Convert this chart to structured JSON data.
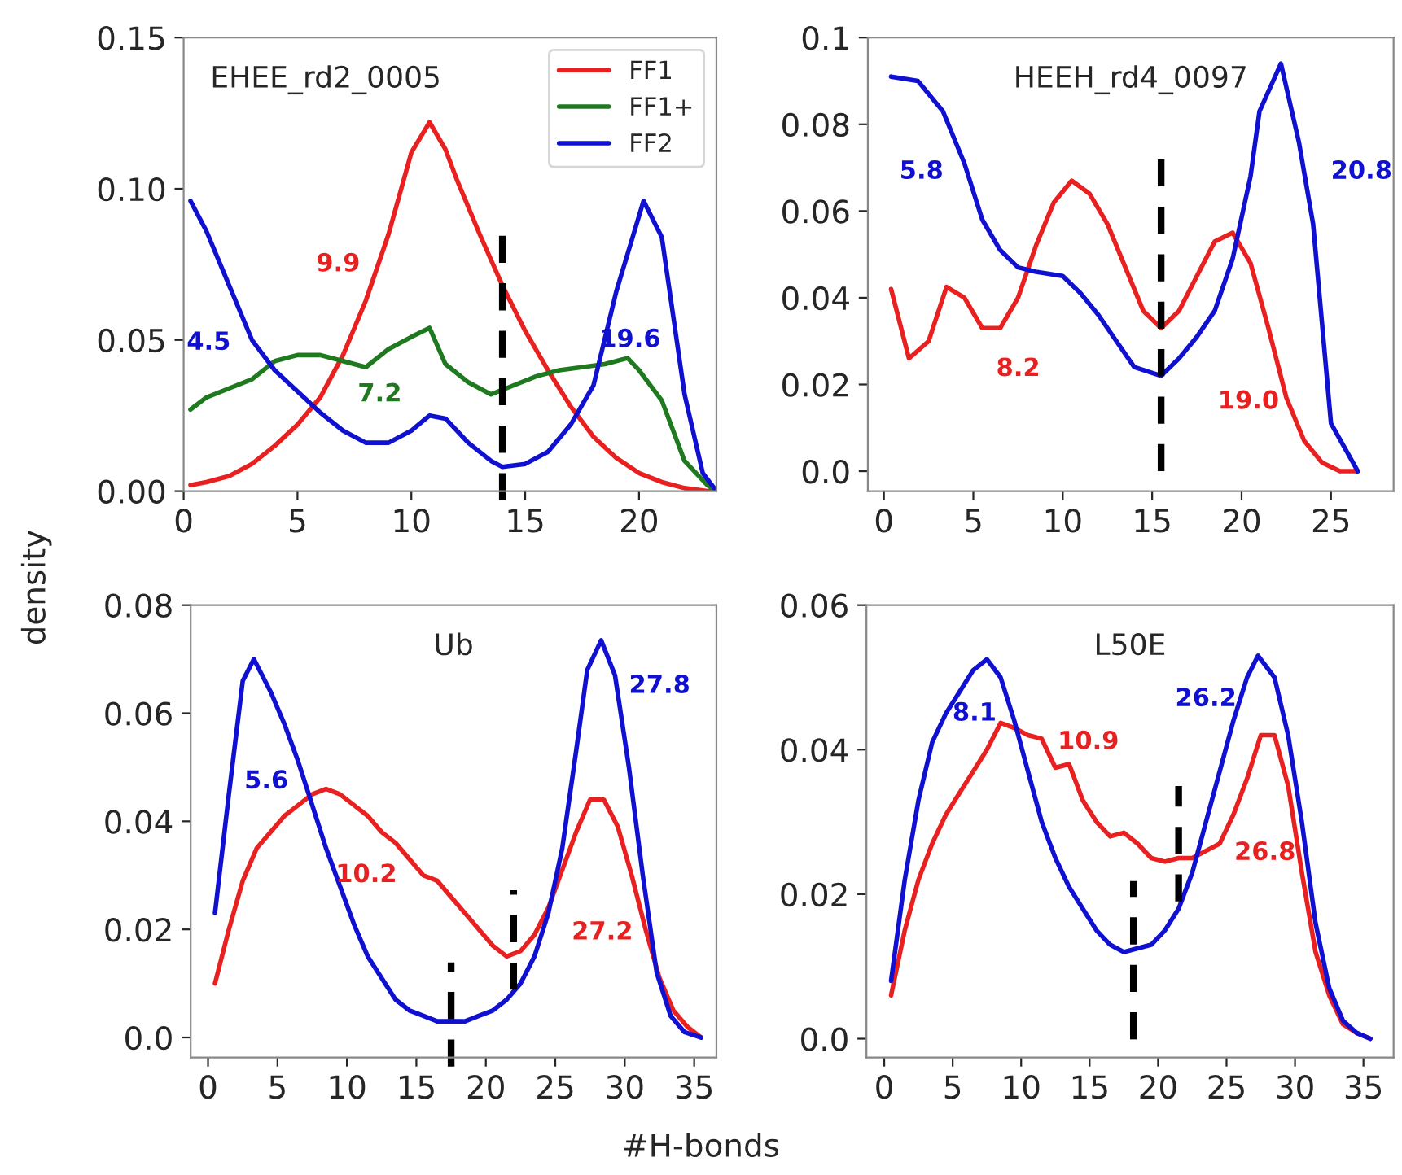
{
  "chart_data": [
    {
      "type": "line",
      "title": "EHEE_rd2_0005",
      "ylabel": "density",
      "xlim": [
        0,
        23.4
      ],
      "ylim": [
        0,
        0.15
      ],
      "xticks": [
        0,
        5,
        10,
        15,
        20
      ],
      "yticks": [
        {
          "value": 0,
          "label": "0.00"
        },
        {
          "value": 0.05,
          "label": "0.05"
        },
        {
          "value": 0.1,
          "label": "0.10"
        },
        {
          "value": 0.15,
          "label": "0.15"
        }
      ],
      "legend": "top right",
      "grid": false,
      "series": [
        {
          "name": "FF1",
          "color": "#e82020",
          "x": [
            0.3,
            1,
            2,
            3,
            4,
            5,
            6,
            7,
            8,
            9,
            10,
            10.8,
            11.5,
            12,
            13,
            14,
            15,
            16,
            17,
            18,
            19,
            20,
            21,
            22,
            23,
            23.4
          ],
          "values": [
            0.002,
            0.003,
            0.005,
            0.009,
            0.015,
            0.022,
            0.031,
            0.045,
            0.063,
            0.085,
            0.112,
            0.122,
            0.113,
            0.103,
            0.085,
            0.068,
            0.053,
            0.04,
            0.028,
            0.018,
            0.011,
            0.006,
            0.003,
            0.001,
            0.0,
            0.0
          ]
        },
        {
          "name": "FF1+",
          "color": "#1f7a1f",
          "x": [
            0.3,
            1,
            2,
            3,
            4,
            5,
            6,
            7,
            8,
            9,
            10,
            10.8,
            11.5,
            12.5,
            13.5,
            14.5,
            15.5,
            16.5,
            17.5,
            18.5,
            19.5,
            20,
            21,
            22,
            23,
            23.4
          ],
          "values": [
            0.027,
            0.031,
            0.034,
            0.037,
            0.043,
            0.045,
            0.045,
            0.043,
            0.041,
            0.047,
            0.051,
            0.054,
            0.042,
            0.036,
            0.032,
            0.035,
            0.038,
            0.04,
            0.041,
            0.042,
            0.044,
            0.04,
            0.03,
            0.01,
            0.002,
            0.0
          ]
        },
        {
          "name": "FF2",
          "color": "#1010d0",
          "x": [
            0.3,
            1,
            2,
            3,
            4,
            5,
            6,
            7,
            8,
            9,
            10,
            10.8,
            11.5,
            12.5,
            13.5,
            14,
            15,
            16,
            17,
            18,
            19,
            20.2,
            21,
            22,
            22.8,
            23.4
          ],
          "values": [
            0.096,
            0.086,
            0.068,
            0.05,
            0.04,
            0.033,
            0.026,
            0.02,
            0.016,
            0.016,
            0.02,
            0.025,
            0.024,
            0.016,
            0.01,
            0.008,
            0.009,
            0.013,
            0.022,
            0.035,
            0.066,
            0.096,
            0.084,
            0.032,
            0.006,
            0.0
          ]
        }
      ],
      "ref_lines": [
        {
          "axis": "x",
          "value": 14,
          "color": "#000000",
          "line_style": "dashed"
        }
      ],
      "annotations": [
        "9.9",
        "4.5",
        "7.2",
        "19.6"
      ]
    },
    {
      "type": "line",
      "title": "HEEH_rd4_0097",
      "xlim": [
        -0.9,
        28.5
      ],
      "ylim": [
        -0.0046,
        0.1
      ],
      "xticks": [
        0,
        5,
        10,
        15,
        20,
        25
      ],
      "yticks": [
        {
          "value": 0,
          "label": "0.0"
        },
        0.02,
        0.04,
        0.06,
        0.08,
        0.1
      ],
      "grid": false,
      "series": [
        {
          "color": "#e82020",
          "x": [
            0.4,
            1.4,
            2.5,
            3.5,
            4.5,
            5.5,
            6.5,
            7.5,
            8.5,
            9.5,
            10.5,
            11.5,
            12.5,
            13.5,
            14.5,
            15.5,
            16.5,
            17.5,
            18.5,
            19.5,
            20.5,
            21.5,
            22.5,
            23.5,
            24.5,
            25.5,
            26.5
          ],
          "values": [
            0.042,
            0.026,
            0.03,
            0.0425,
            0.04,
            0.033,
            0.033,
            0.04,
            0.052,
            0.062,
            0.067,
            0.064,
            0.057,
            0.047,
            0.037,
            0.033,
            0.037,
            0.045,
            0.053,
            0.055,
            0.048,
            0.033,
            0.017,
            0.007,
            0.002,
            0.0,
            0.0
          ]
        },
        {
          "color": "#1010d0",
          "x": [
            0.4,
            1.9,
            3.3,
            4.5,
            5.5,
            6.5,
            7.5,
            8.5,
            10,
            11,
            12,
            13,
            14,
            15.5,
            16.5,
            17.5,
            18.5,
            19.5,
            20.5,
            21,
            22.2,
            23.2,
            24,
            25,
            26.5
          ],
          "values": [
            0.091,
            0.09,
            0.083,
            0.071,
            0.058,
            0.051,
            0.047,
            0.046,
            0.045,
            0.041,
            0.036,
            0.03,
            0.024,
            0.022,
            0.026,
            0.031,
            0.037,
            0.049,
            0.068,
            0.083,
            0.094,
            0.076,
            0.057,
            0.011,
            0.0
          ]
        }
      ],
      "ref_lines": [
        {
          "axis": "x",
          "value": 15.5,
          "color": "#000000",
          "line_style": "dashed"
        }
      ],
      "annotations": [
        "5.8",
        "8.2",
        "19.0",
        "20.8"
      ]
    },
    {
      "type": "line",
      "title": "Ub",
      "xlabel": "#H-bonds",
      "xlim": [
        -1.25,
        36.6
      ],
      "ylim": [
        -0.0037,
        0.08
      ],
      "xticks": [
        0,
        5,
        10,
        15,
        20,
        25,
        30,
        35
      ],
      "yticks": [
        {
          "value": 0,
          "label": "0.0"
        },
        0.02,
        0.04,
        0.06,
        0.08
      ],
      "grid": false,
      "series": [
        {
          "color": "#e82020",
          "x": [
            0.5,
            1.5,
            2.5,
            3.5,
            4.5,
            5.5,
            6.5,
            7.5,
            8.5,
            9.5,
            10.5,
            11.5,
            12.5,
            13.5,
            14.5,
            15.5,
            16.5,
            17.5,
            18.5,
            19.5,
            20.5,
            21.5,
            22.5,
            23.5,
            24.5,
            25.5,
            26.5,
            27.5,
            28.5,
            29.5,
            30.5,
            31.5,
            32.5,
            33.5,
            34.5,
            35.5
          ],
          "values": [
            0.01,
            0.02,
            0.029,
            0.035,
            0.038,
            0.041,
            0.043,
            0.045,
            0.046,
            0.045,
            0.043,
            0.041,
            0.038,
            0.036,
            0.033,
            0.03,
            0.029,
            0.026,
            0.023,
            0.02,
            0.017,
            0.015,
            0.016,
            0.019,
            0.024,
            0.031,
            0.038,
            0.044,
            0.044,
            0.039,
            0.03,
            0.02,
            0.011,
            0.005,
            0.002,
            0.0
          ]
        },
        {
          "color": "#1010d0",
          "x": [
            0.5,
            1.5,
            2.5,
            3.3,
            4.5,
            5.5,
            6.5,
            7.5,
            8.5,
            9.5,
            10.5,
            11.5,
            12.5,
            13.5,
            14.5,
            15.5,
            16.5,
            17.5,
            18.5,
            19.5,
            20.5,
            21.5,
            22.5,
            23.5,
            24.5,
            25.5,
            26.5,
            27.3,
            28.3,
            29.3,
            30.3,
            31.3,
            32.3,
            33.3,
            34.3,
            35.5
          ],
          "values": [
            0.023,
            0.045,
            0.066,
            0.07,
            0.064,
            0.058,
            0.051,
            0.043,
            0.035,
            0.028,
            0.021,
            0.015,
            0.011,
            0.007,
            0.005,
            0.004,
            0.003,
            0.003,
            0.003,
            0.004,
            0.005,
            0.007,
            0.01,
            0.015,
            0.023,
            0.035,
            0.053,
            0.068,
            0.0735,
            0.067,
            0.05,
            0.03,
            0.012,
            0.004,
            0.001,
            0.0
          ]
        }
      ],
      "ref_lines": [
        {
          "axis": "x",
          "value": 17.5,
          "color": "#000000",
          "line_style": "dashed"
        },
        {
          "axis": "x",
          "value": 22,
          "color": "#000000",
          "line_style": "dashed"
        }
      ],
      "annotations": [
        "5.6",
        "10.2",
        "27.2",
        "27.8"
      ]
    },
    {
      "type": "line",
      "title": "L50E",
      "xlim": [
        -1.3,
        37.2
      ],
      "ylim": [
        -0.0026,
        0.06
      ],
      "xticks": [
        0,
        5,
        10,
        15,
        20,
        25,
        30,
        35
      ],
      "yticks": [
        {
          "value": 0,
          "label": "0.0"
        },
        0.02,
        0.04,
        0.06
      ],
      "grid": false,
      "series": [
        {
          "color": "#e82020",
          "x": [
            0.5,
            1.5,
            2.5,
            3.5,
            4.5,
            5.5,
            6.5,
            7.5,
            8.5,
            9.5,
            10.5,
            11.5,
            12.5,
            13.5,
            14.5,
            15.5,
            16.5,
            17.5,
            18.5,
            19.5,
            20.5,
            21.5,
            22.5,
            23.5,
            24.5,
            25.5,
            26.5,
            27.5,
            28.5,
            29.5,
            30.5,
            31.5,
            32.5,
            33.5,
            34.5,
            35.5
          ],
          "values": [
            0.006,
            0.015,
            0.022,
            0.027,
            0.031,
            0.034,
            0.037,
            0.04,
            0.0437,
            0.043,
            0.042,
            0.0415,
            0.0375,
            0.038,
            0.033,
            0.03,
            0.028,
            0.0285,
            0.027,
            0.025,
            0.0245,
            0.025,
            0.025,
            0.026,
            0.027,
            0.031,
            0.036,
            0.042,
            0.042,
            0.035,
            0.023,
            0.012,
            0.006,
            0.002,
            0.0008,
            0.0
          ]
        },
        {
          "color": "#1010d0",
          "x": [
            0.5,
            1.5,
            2.5,
            3.5,
            4.5,
            5.5,
            6.5,
            7.5,
            8.5,
            9.5,
            10.5,
            11.5,
            12.5,
            13.5,
            14.5,
            15.5,
            16.5,
            17.5,
            18.5,
            19.5,
            20.5,
            21.5,
            22.5,
            23.5,
            24.5,
            25.5,
            26.5,
            27.3,
            28.5,
            29.5,
            30.5,
            31.5,
            32.5,
            33.5,
            34.5,
            35.5
          ],
          "values": [
            0.008,
            0.022,
            0.033,
            0.041,
            0.045,
            0.048,
            0.051,
            0.0525,
            0.05,
            0.044,
            0.037,
            0.03,
            0.025,
            0.021,
            0.018,
            0.015,
            0.013,
            0.012,
            0.0125,
            0.013,
            0.015,
            0.018,
            0.023,
            0.03,
            0.037,
            0.044,
            0.05,
            0.053,
            0.05,
            0.042,
            0.03,
            0.016,
            0.007,
            0.0025,
            0.0008,
            0.0
          ]
        }
      ],
      "ref_lines": [
        {
          "axis": "x",
          "value": 18.2,
          "color": "#000000",
          "line_style": "dashed"
        },
        {
          "axis": "x",
          "value": 21.5,
          "color": "#000000",
          "line_style": "dashed"
        }
      ],
      "annotations": [
        "8.1",
        "10.9",
        "26.2",
        "26.8"
      ]
    }
  ]
}
